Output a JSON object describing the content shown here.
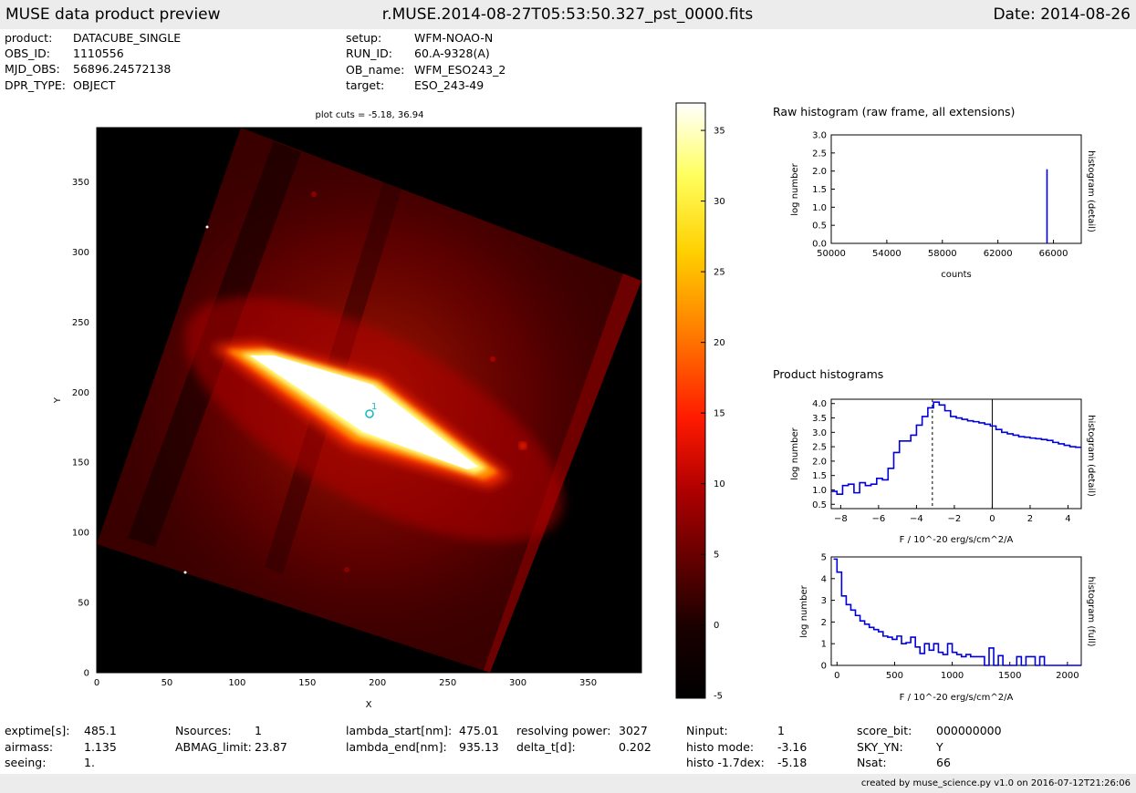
{
  "header": {
    "title": "MUSE data product preview",
    "filename": "r.MUSE.2014-08-27T05:53:50.327_pst_0000.fits",
    "date": "Date: 2014-08-26"
  },
  "info": {
    "left": [
      {
        "key": "product:",
        "value": "DATACUBE_SINGLE"
      },
      {
        "key": "OBS_ID:",
        "value": "1110556"
      },
      {
        "key": "MJD_OBS:",
        "value": "56896.24572138"
      },
      {
        "key": "DPR_TYPE:",
        "value": "OBJECT"
      }
    ],
    "right": [
      {
        "key": "setup:",
        "value": "WFM-NOAO-N"
      },
      {
        "key": "RUN_ID:",
        "value": "60.A-9328(A)"
      },
      {
        "key": "OB_name:",
        "value": "WFM_ESO243_2"
      },
      {
        "key": "target:",
        "value": "ESO_243-49"
      }
    ]
  },
  "image_panel": {
    "plot_cuts": "plot cuts = -5.18, 36.94",
    "xlabel": "X",
    "ylabel": "Y",
    "xticks": [
      "0",
      "50",
      "100",
      "150",
      "200",
      "250",
      "300",
      "350"
    ],
    "yticks": [
      "0",
      "50",
      "100",
      "150",
      "200",
      "250",
      "300",
      "350"
    ],
    "source_label": "1",
    "colorbar_ticks": [
      "35",
      "30",
      "25",
      "20",
      "15",
      "10",
      "5",
      "0",
      "-5"
    ]
  },
  "chart_data": [
    {
      "type": "image",
      "title": "plot cuts = -5.18, 36.94",
      "xlabel": "X",
      "ylabel": "Y",
      "xlim": [
        0,
        388
      ],
      "ylim": [
        0,
        388
      ],
      "colorbar_range": [
        -5.18,
        36.94
      ],
      "colorbar_ticks": [
        -5,
        0,
        5,
        10,
        15,
        20,
        25,
        30,
        35
      ],
      "sources": [
        {
          "label": "1",
          "x": 194,
          "y": 185
        }
      ]
    },
    {
      "type": "line",
      "title": "Raw histogram (raw frame, all extensions)",
      "xlabel": "counts",
      "ylabel": "log number",
      "right_label": "histogram (detail)",
      "xlim": [
        50000,
        68000
      ],
      "ylim": [
        0,
        3.0
      ],
      "xticks": [
        "50000",
        "54000",
        "58000",
        "62000",
        "66000"
      ],
      "yticks": [
        "0.0",
        "0.5",
        "1.0",
        "1.5",
        "2.0",
        "2.5",
        "3.0"
      ],
      "series": [
        {
          "x": [
            65535,
            65535
          ],
          "y": [
            0.0,
            2.05
          ]
        }
      ]
    },
    {
      "type": "line",
      "section_title": "Product histograms",
      "xlabel": "F / 10^-20 erg/s/cm^2/A",
      "ylabel": "log number",
      "right_label": "histogram (detail)",
      "xlim": [
        -8.5,
        4.7
      ],
      "ylim": [
        0.35,
        4.15
      ],
      "xticks": [
        "−8",
        "−6",
        "−4",
        "−2",
        "0",
        "2",
        "4"
      ],
      "yticks": [
        "0.5",
        "1.0",
        "1.5",
        "2.0",
        "2.5",
        "3.0",
        "3.5",
        "4.0"
      ],
      "markers": {
        "histo_mode": -3.16,
        "zero": 0
      },
      "series": [
        {
          "x": [
            -8.5,
            -8.2,
            -7.9,
            -7.6,
            -7.3,
            -7.0,
            -6.7,
            -6.4,
            -6.1,
            -5.8,
            -5.5,
            -5.2,
            -4.9,
            -4.6,
            -4.3,
            -4.0,
            -3.7,
            -3.4,
            -3.1,
            -2.8,
            -2.5,
            -2.2,
            -1.9,
            -1.6,
            -1.3,
            -1.0,
            -0.7,
            -0.4,
            -0.1,
            0.2,
            0.5,
            0.8,
            1.1,
            1.4,
            1.7,
            2.0,
            2.3,
            2.6,
            2.9,
            3.2,
            3.5,
            3.8,
            4.1,
            4.4,
            4.7
          ],
          "y": [
            0.95,
            0.85,
            1.15,
            1.2,
            0.9,
            1.25,
            1.15,
            1.2,
            1.4,
            1.35,
            1.75,
            2.3,
            2.7,
            2.7,
            2.9,
            3.25,
            3.55,
            3.85,
            4.05,
            3.95,
            3.75,
            3.55,
            3.5,
            3.45,
            3.4,
            3.37,
            3.33,
            3.28,
            3.22,
            3.1,
            3.0,
            2.95,
            2.9,
            2.85,
            2.83,
            2.8,
            2.78,
            2.75,
            2.72,
            2.65,
            2.6,
            2.55,
            2.5,
            2.48,
            2.48
          ]
        }
      ]
    },
    {
      "type": "line",
      "xlabel": "F / 10^-20 erg/s/cm^2/A",
      "ylabel": "log number",
      "right_label": "histogram (full)",
      "xlim": [
        -50,
        2120
      ],
      "ylim": [
        0,
        5
      ],
      "xticks": [
        "0",
        "500",
        "1000",
        "1500",
        "2000"
      ],
      "yticks": [
        "0",
        "1",
        "2",
        "3",
        "4",
        "5"
      ],
      "series": [
        {
          "x": [
            -30,
            0,
            40,
            80,
            120,
            160,
            200,
            240,
            280,
            320,
            360,
            400,
            440,
            480,
            520,
            560,
            600,
            640,
            680,
            720,
            760,
            800,
            840,
            880,
            920,
            960,
            1000,
            1040,
            1080,
            1120,
            1160,
            1200,
            1240,
            1280,
            1320,
            1360,
            1400,
            1440,
            1480,
            1520,
            1560,
            1600,
            1640,
            1680,
            1720,
            1760,
            1800,
            1840,
            1880,
            1920,
            1960,
            2000,
            2040,
            2080,
            2120
          ],
          "y": [
            4.9,
            4.3,
            3.2,
            2.8,
            2.55,
            2.3,
            2.05,
            1.9,
            1.75,
            1.65,
            1.55,
            1.35,
            1.3,
            1.2,
            1.35,
            1.0,
            1.05,
            1.3,
            0.85,
            0.55,
            1.0,
            0.7,
            1.0,
            0.6,
            0.5,
            1.0,
            0.6,
            0.5,
            0.4,
            0.5,
            0.4,
            0.4,
            0.4,
            0.0,
            0.8,
            0.0,
            0.45,
            0.0,
            0.0,
            0.0,
            0.4,
            0.0,
            0.4,
            0.4,
            0.0,
            0.4,
            0.0,
            0.0,
            0.0,
            0.0,
            0.0,
            0.0,
            0.0,
            0.0,
            0.0
          ]
        }
      ]
    }
  ],
  "raw_hist": {
    "title": "Raw histogram (raw frame, all extensions)",
    "xlabel": "counts",
    "ylabel": "log number",
    "right_label": "histogram (detail)"
  },
  "products": {
    "title": "Product histograms",
    "detail_xlabel": "F / 10^-20 erg/s/cm^2/A",
    "detail_ylabel": "log number",
    "detail_right": "histogram (detail)",
    "full_xlabel": "F / 10^-20 erg/s/cm^2/A",
    "full_ylabel": "log number",
    "full_right": "histogram (full)"
  },
  "stats": {
    "exptime_k": "exptime[s]:",
    "exptime_v": "485.1",
    "airmass_k": "airmass:",
    "airmass_v": "1.135",
    "seeing_k": "seeing:",
    "seeing_v": "1.",
    "nsources_k": "Nsources:",
    "nsources_v": "1",
    "abmag_k": "ABMAG_limit:",
    "abmag_v": "23.87",
    "lstart_k": "lambda_start[nm]:",
    "lstart_v": "475.01",
    "lend_k": "lambda_end[nm]:",
    "lend_v": "935.13",
    "rpower_k": "resolving power:",
    "rpower_v": "3027",
    "deltat_k": "delta_t[d]:",
    "deltat_v": "0.202",
    "ninput_k": "Ninput:",
    "ninput_v": "1",
    "hmode_k": "histo mode:",
    "hmode_v": "-3.16",
    "h17_k": "histo -1.7dex:",
    "h17_v": "-5.18",
    "score_k": "score_bit:",
    "score_v": "000000000",
    "skyyn_k": "SKY_YN:",
    "skyyn_v": "Y",
    "nsat_k": "Nsat:",
    "nsat_v": "66"
  },
  "footer": {
    "text": "created by muse_science.py v1.0 on 2016-07-12T21:26:06"
  },
  "colors": {
    "histogram_line": "#0000dd",
    "source_marker": "#18b8c0",
    "header_bg": "#ececec"
  }
}
